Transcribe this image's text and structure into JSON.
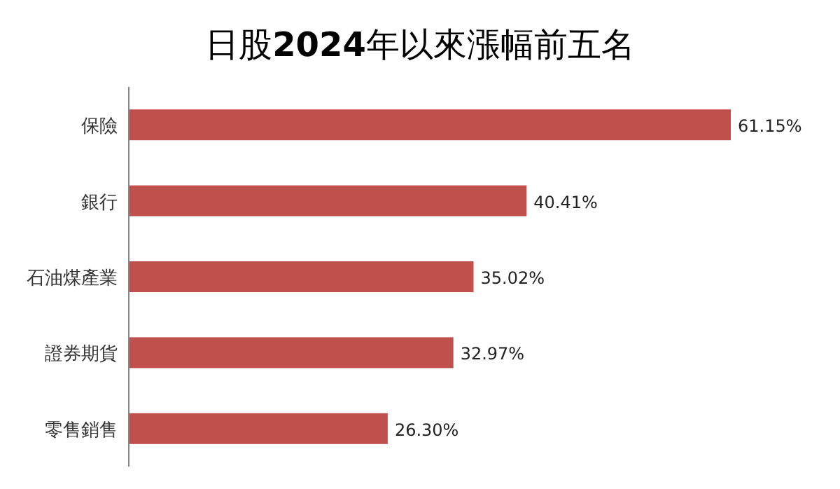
{
  "chart_data": {
    "type": "bar",
    "orientation": "horizontal",
    "title": "日股**2024**年以來漲幅前五名",
    "categories": [
      "保險",
      "銀行",
      "石油煤產業",
      "證券期貨",
      "零售銷售"
    ],
    "values": [
      61.15,
      40.41,
      35.02,
      32.97,
      26.3
    ],
    "value_labels": [
      "61.15%",
      "40.41%",
      "35.02%",
      "32.97%",
      "26.30%"
    ],
    "color": "#c0504d"
  }
}
